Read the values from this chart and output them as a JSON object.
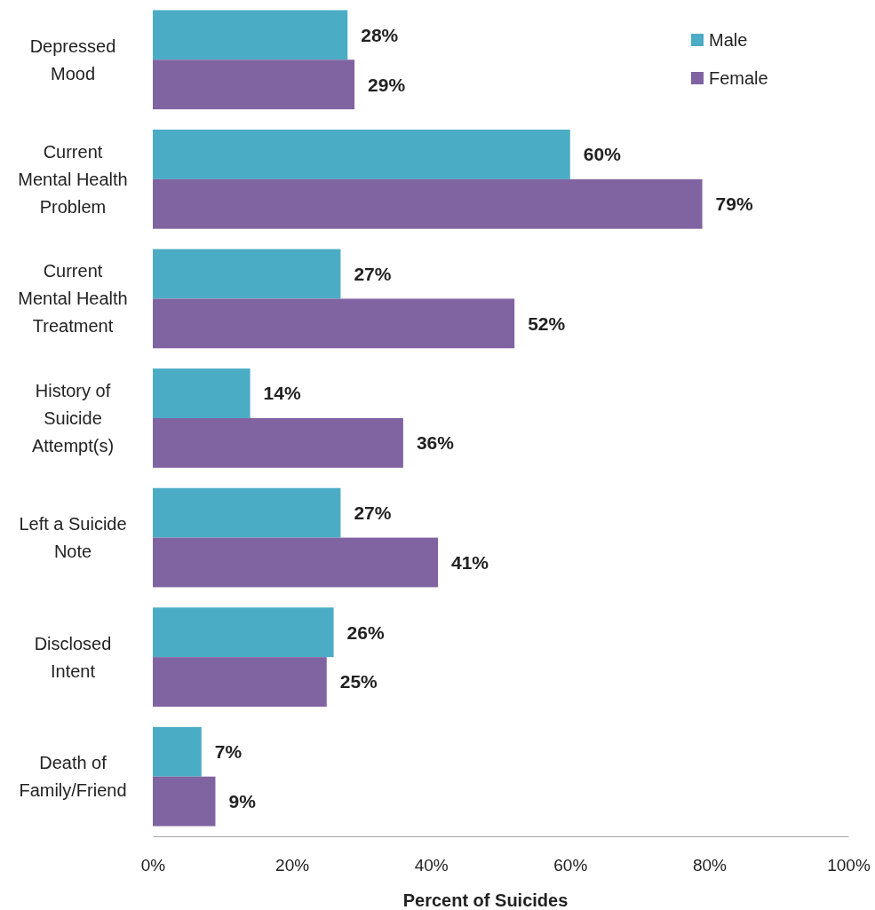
{
  "chart_data": {
    "type": "bar",
    "orientation": "horizontal",
    "xlabel": "Percent of Suicides",
    "categories": [
      "Depressed\nMood",
      "Current\nMental Health\nProblem",
      "Current\nMental Health\nTreatment",
      "History of\nSuicide\nAttempt(s)",
      "Left a Suicide\nNote",
      "Disclosed\nIntent",
      "Death of\nFamily/Friend"
    ],
    "series": [
      {
        "name": "Male",
        "color": "#4bacc6",
        "values": [
          28,
          60,
          27,
          14,
          27,
          26,
          7
        ],
        "value_labels": [
          "28%",
          "60%",
          "27%",
          "14%",
          "27%",
          "26%",
          "7%"
        ]
      },
      {
        "name": "Female",
        "color": "#8064a2",
        "values": [
          29,
          79,
          52,
          36,
          41,
          25,
          9
        ],
        "value_labels": [
          "29%",
          "79%",
          "52%",
          "36%",
          "41%",
          "25%",
          "9%"
        ]
      }
    ],
    "xlim": [
      0,
      100
    ],
    "xticks": [
      {
        "value": 0,
        "label": "0%"
      },
      {
        "value": 20,
        "label": "20%"
      },
      {
        "value": 40,
        "label": "40%"
      },
      {
        "value": 60,
        "label": "60%"
      },
      {
        "value": 80,
        "label": "80%"
      },
      {
        "value": 100,
        "label": "100%"
      }
    ],
    "legend": "top right",
    "grid": false
  }
}
